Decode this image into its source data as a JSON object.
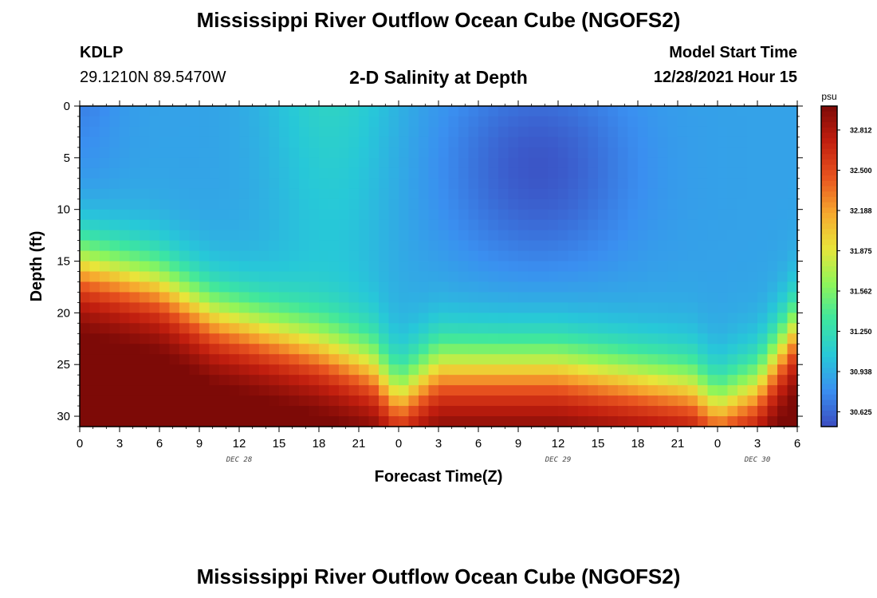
{
  "header": {
    "title": "Mississippi River Outflow Ocean Cube (NGOFS2)",
    "station_id": "KDLP",
    "coordinates": "29.1210N  89.5470W",
    "subtitle": "2-D Salinity at Depth",
    "model_start_label": "Model Start Time",
    "model_start_value": "12/28/2021 Hour 15"
  },
  "footer": {
    "title": "Mississippi River Outflow Ocean Cube (NGOFS2)"
  },
  "chart_data": {
    "type": "heatmap",
    "xlabel": "Forecast Time(Z)",
    "ylabel": "Depth (ft)",
    "x_ticks": [
      "0",
      "3",
      "6",
      "9",
      "12",
      "15",
      "18",
      "21",
      "0",
      "3",
      "6",
      "9",
      "12",
      "15",
      "18",
      "21",
      "0",
      "3",
      "6"
    ],
    "x_range_hours": [
      0,
      54
    ],
    "day_labels": [
      {
        "label": "DEC 28",
        "at_hour": 12
      },
      {
        "label": "DEC 29",
        "at_hour": 36
      },
      {
        "label": "DEC 30",
        "at_hour": 51
      }
    ],
    "y_ticks": [
      0,
      5,
      10,
      15,
      20,
      25,
      30
    ],
    "y_range": [
      0,
      31
    ],
    "y_inverted": true,
    "colorbar": {
      "unit": "psu",
      "ticks": [
        "32.812",
        "32.500",
        "32.188",
        "31.875",
        "31.562",
        "31.250",
        "30.938",
        "30.625"
      ],
      "range": [
        30.5,
        33.0
      ],
      "colors": [
        "#3b4cc0",
        "#3a8ff0",
        "#27c8d8",
        "#3de6a0",
        "#8ef55a",
        "#e8e53a",
        "#f7a72e",
        "#e8531f",
        "#c21f0f",
        "#7d0a07"
      ]
    },
    "field_description": {
      "surface_salinity_psu": 30.9,
      "bottom_salinity_psu": 32.9,
      "halocline_depth_ft_at_hours": [
        {
          "hour": 0,
          "depth": 15
        },
        {
          "hour": 6,
          "depth": 17
        },
        {
          "hour": 10,
          "depth": 20
        },
        {
          "hour": 18,
          "depth": 23
        },
        {
          "hour": 22,
          "depth": 25
        },
        {
          "hour": 24,
          "depth": 28
        },
        {
          "hour": 27,
          "depth": 25
        },
        {
          "hour": 36,
          "depth": 25
        },
        {
          "hour": 46,
          "depth": 27
        },
        {
          "hour": 48,
          "depth": 29
        },
        {
          "hour": 51,
          "depth": 27
        },
        {
          "hour": 54,
          "depth": 21
        }
      ]
    }
  }
}
